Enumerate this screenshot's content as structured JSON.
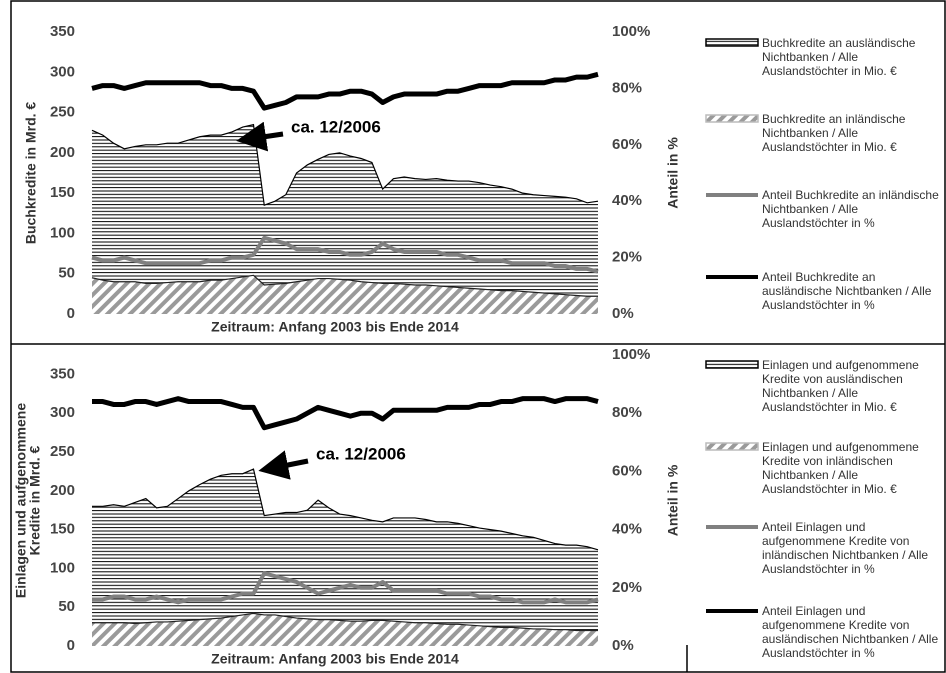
{
  "chart_data": [
    {
      "type": "combo",
      "legend": "right",
      "y_label": [
        "Buchkredite in Mrd. €"
      ],
      "y2_label": "Anteil in %",
      "x_label": "Zeitraum: Anfang 2003 bis Ende 2014",
      "annotation": "ca. 12/2006",
      "ylim": [
        0,
        350
      ],
      "yticks": [
        0,
        50,
        100,
        150,
        200,
        250,
        300,
        350
      ],
      "y2lim": [
        0,
        100
      ],
      "y2ticks": [
        {
          "value": 0,
          "label": "0%"
        },
        {
          "value": 20,
          "label": "20%"
        },
        {
          "value": 40,
          "label": "40%"
        },
        {
          "value": 60,
          "label": "60%"
        },
        {
          "value": 80,
          "label": "80%"
        },
        {
          "value": 100,
          "label": "100%"
        }
      ],
      "stacked": true,
      "series": [
        {
          "name": "Buchkredite an ausländische Nichtbanken / Alle Auslandstöchter in Mio. €",
          "type": "area",
          "pattern": "horizontal",
          "color": "#000000",
          "values": [
            183,
            180,
            172,
            165,
            168,
            172,
            172,
            173,
            172,
            176,
            180,
            180,
            180,
            182,
            186,
            187,
            99,
            103,
            110,
            135,
            143,
            148,
            154,
            157,
            154,
            153,
            149,
            117,
            130,
            133,
            132,
            131,
            133,
            132,
            132,
            133,
            132,
            130,
            129,
            126,
            122,
            121,
            121,
            121,
            121,
            120,
            116,
            118
          ]
        },
        {
          "name": "Buchkredite an inländische Nichtbanken / Alle Auslandstöchter in Mio. €",
          "type": "area",
          "pattern": "diagonal",
          "color": "#9a9a9a",
          "values": [
            45,
            42,
            40,
            40,
            40,
            38,
            38,
            39,
            40,
            40,
            40,
            42,
            42,
            44,
            46,
            48,
            36,
            37,
            38,
            40,
            42,
            44,
            44,
            43,
            42,
            40,
            39,
            38,
            38,
            37,
            36,
            36,
            35,
            34,
            33,
            32,
            31,
            30,
            29,
            29,
            28,
            27,
            26,
            25,
            24,
            23,
            22,
            22
          ]
        },
        {
          "name": "Anteil Buchkredite an inländische Nichtbanken / Alle Auslandstöchter in %",
          "type": "line",
          "axis": "y2",
          "color": "#808080",
          "values": [
            20,
            19,
            19,
            20,
            19,
            18,
            18,
            18,
            18,
            18,
            18,
            19,
            19,
            20,
            20,
            21,
            27,
            26,
            25,
            23,
            23,
            23,
            22,
            22,
            21,
            21,
            22,
            25,
            23,
            22,
            22,
            22,
            22,
            21,
            21,
            20,
            19,
            19,
            19,
            18,
            18,
            18,
            18,
            17,
            17,
            16,
            16,
            15
          ]
        },
        {
          "name": "Anteil Buchkredite an ausländische Nichtbanken / Alle Auslandstöchter in %",
          "type": "line",
          "axis": "y2",
          "color": "#000000",
          "values": [
            80,
            81,
            81,
            80,
            81,
            82,
            82,
            82,
            82,
            82,
            82,
            81,
            81,
            80,
            80,
            79,
            73,
            74,
            75,
            77,
            77,
            77,
            78,
            78,
            79,
            79,
            78,
            75,
            77,
            78,
            78,
            78,
            78,
            79,
            79,
            80,
            81,
            81,
            81,
            82,
            82,
            82,
            82,
            83,
            83,
            84,
            84,
            85
          ]
        }
      ]
    },
    {
      "type": "combo",
      "legend": "right",
      "y_label": [
        "Einlagen und aufgenommene",
        "Kredite in Mrd. €"
      ],
      "y2_label": "Anteil in %",
      "x_label": "Zeitraum: Anfang 2003 bis Ende 2014",
      "annotation": "ca. 12/2006",
      "ylim": [
        0,
        375
      ],
      "yticks": [
        0,
        50,
        100,
        150,
        200,
        250,
        300,
        350
      ],
      "y2lim": [
        0,
        100
      ],
      "y2ticks": [
        {
          "value": 0,
          "label": "0%"
        },
        {
          "value": 20,
          "label": "20%"
        },
        {
          "value": 40,
          "label": "40%"
        },
        {
          "value": 60,
          "label": "60%"
        },
        {
          "value": 80,
          "label": "80%"
        },
        {
          "value": 100,
          "label": "100%"
        }
      ],
      "stacked": true,
      "series": [
        {
          "name": "Einlagen und aufgenommene Kredite von ausländischen Nichtbanken / Alle Auslandstöchter in Mio. €",
          "type": "area",
          "pattern": "horizontal",
          "color": "#000000",
          "values": [
            150,
            150,
            152,
            150,
            156,
            160,
            147,
            149,
            158,
            167,
            174,
            180,
            184,
            184,
            182,
            186,
            128,
            130,
            134,
            136,
            140,
            154,
            144,
            137,
            136,
            133,
            129,
            127,
            133,
            134,
            135,
            133,
            131,
            132,
            130,
            128,
            126,
            125,
            124,
            121,
            119,
            118,
            114,
            111,
            109,
            110,
            108,
            104
          ]
        },
        {
          "name": "Einlagen und aufgenommene Kredite von inländischen Nichtbanken / Alle Auslandstöchter in Mio. €",
          "type": "area",
          "pattern": "diagonal",
          "color": "#9a9a9a",
          "values": [
            30,
            30,
            30,
            30,
            29,
            30,
            31,
            31,
            32,
            33,
            34,
            35,
            36,
            38,
            40,
            42,
            40,
            40,
            38,
            36,
            35,
            34,
            34,
            33,
            32,
            32,
            33,
            33,
            32,
            31,
            30,
            30,
            29,
            28,
            28,
            27,
            26,
            25,
            24,
            24,
            23,
            22,
            22,
            21,
            21,
            20,
            20,
            20
          ]
        },
        {
          "name": "Anteil Einlagen und aufgenommene Kredite von inländischen Nichtbanken / Alle Auslandstöchter in %",
          "type": "line",
          "axis": "y2",
          "color": "#808080",
          "values": [
            16,
            16,
            17,
            17,
            16,
            16,
            17,
            16,
            15,
            16,
            16,
            16,
            16,
            17,
            18,
            18,
            25,
            24,
            23,
            22,
            20,
            18,
            19,
            20,
            21,
            20,
            20,
            22,
            19,
            19,
            19,
            19,
            19,
            18,
            18,
            18,
            17,
            17,
            16,
            16,
            15,
            15,
            15,
            16,
            15,
            15,
            15,
            16
          ]
        },
        {
          "name": "Anteil Einlagen und aufgenommene Kredite von ausländischen Nichtbanken / Alle Auslandstöchter in %",
          "type": "line",
          "axis": "y2",
          "color": "#000000",
          "values": [
            84,
            84,
            83,
            83,
            84,
            84,
            83,
            84,
            85,
            84,
            84,
            84,
            84,
            83,
            82,
            82,
            75,
            76,
            77,
            78,
            80,
            82,
            81,
            80,
            79,
            80,
            80,
            78,
            81,
            81,
            81,
            81,
            81,
            82,
            82,
            82,
            83,
            83,
            84,
            84,
            85,
            85,
            85,
            84,
            85,
            85,
            85,
            84
          ]
        }
      ]
    }
  ]
}
